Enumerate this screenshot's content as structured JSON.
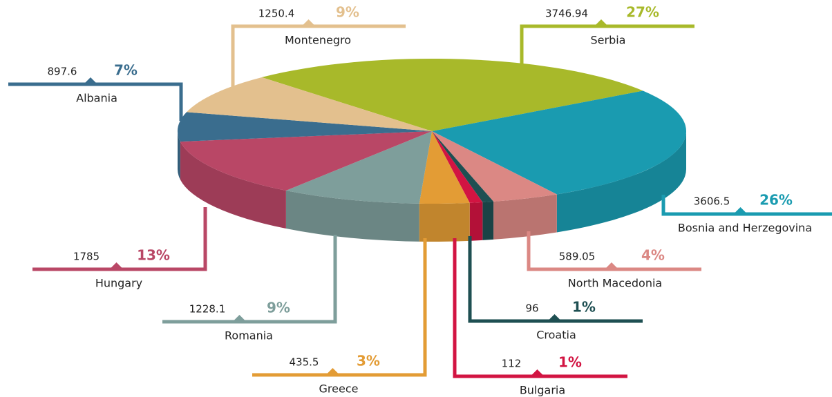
{
  "chart_data": {
    "type": "pie3d",
    "categories": [
      "Serbia",
      "Bosnia and Herzegovina",
      "North Macedonia",
      "Croatia",
      "Bulgaria",
      "Greece",
      "Romania",
      "Hungary",
      "Albania",
      "Montenegro"
    ],
    "values": [
      3746.94,
      3606.5,
      589.05,
      96,
      112,
      435.5,
      1228.1,
      1785,
      897.6,
      1250.4
    ],
    "percent_labels": [
      "27%",
      "26%",
      "4%",
      "1%",
      "1%",
      "3%",
      "9%",
      "13%",
      "7%",
      "9%"
    ],
    "colors": [
      "#a8b92a",
      "#1a9bb0",
      "#db8884",
      "#1e4f52",
      "#d21442",
      "#e39c35",
      "#7e9e9b",
      "#b94766",
      "#3a6d8e",
      "#e3c08e"
    ]
  }
}
